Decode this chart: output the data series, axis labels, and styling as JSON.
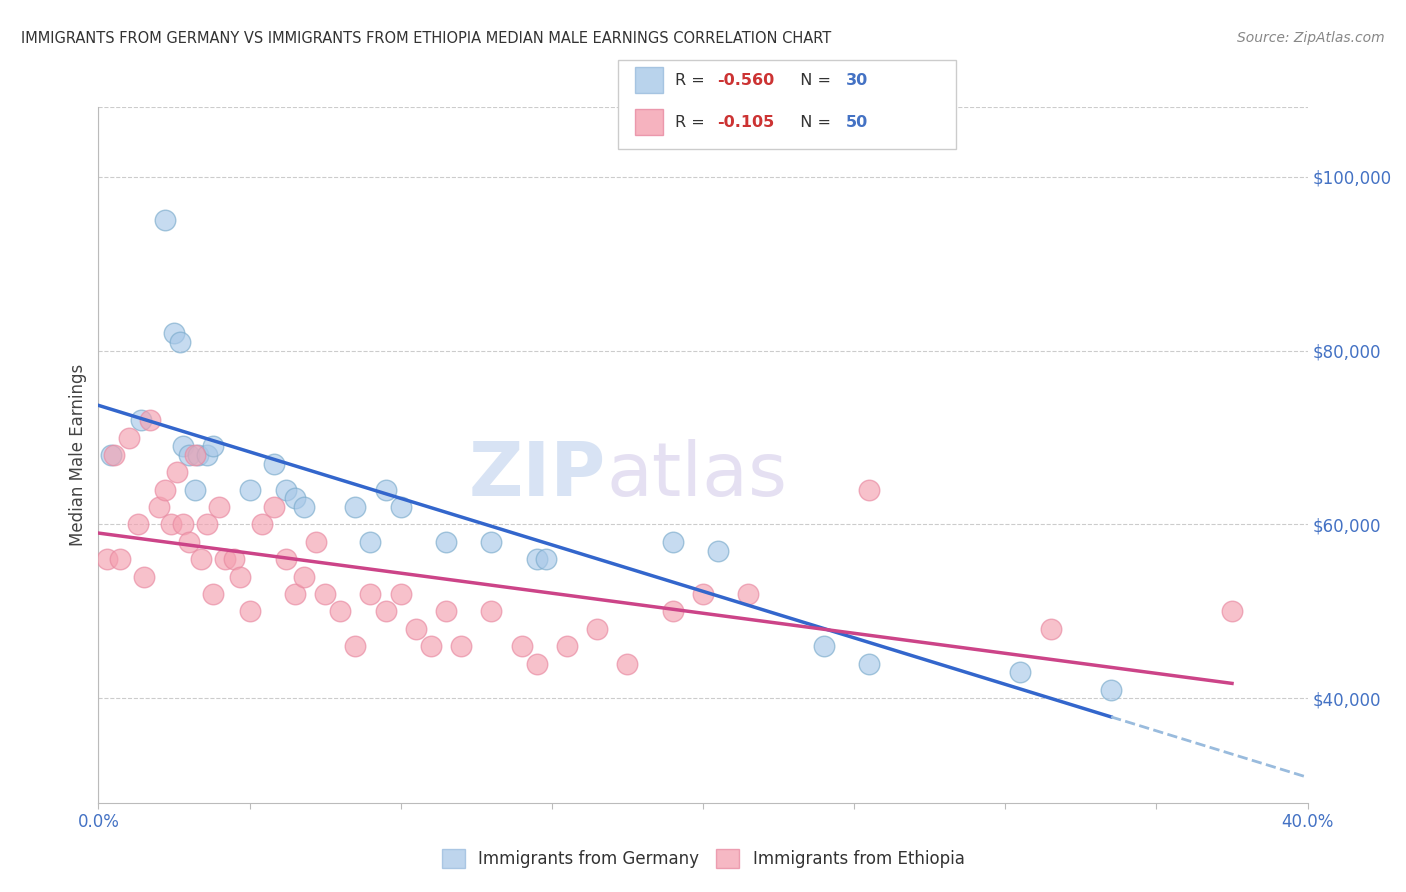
{
  "title": "IMMIGRANTS FROM GERMANY VS IMMIGRANTS FROM ETHIOPIA MEDIAN MALE EARNINGS CORRELATION CHART",
  "source": "Source: ZipAtlas.com",
  "ylabel": "Median Male Earnings",
  "right_yticks": [
    "$100,000",
    "$80,000",
    "$60,000",
    "$40,000"
  ],
  "right_ytick_vals": [
    100000,
    80000,
    60000,
    40000
  ],
  "watermark_zip": "ZIP",
  "watermark_atlas": "atlas",
  "germany_color": "#a8c8e8",
  "ethiopia_color": "#f4a0b0",
  "germany_line_color": "#3366cc",
  "ethiopia_line_color": "#cc4488",
  "germany_line_dash_color": "#99bbdd",
  "background_color": "#ffffff",
  "xlim": [
    0.0,
    0.4
  ],
  "ylim": [
    28000,
    108000
  ],
  "germany_x": [
    0.004,
    0.014,
    0.022,
    0.025,
    0.027,
    0.028,
    0.03,
    0.032,
    0.033,
    0.036,
    0.038,
    0.05,
    0.058,
    0.062,
    0.065,
    0.068,
    0.085,
    0.09,
    0.095,
    0.1,
    0.115,
    0.13,
    0.145,
    0.148,
    0.19,
    0.205,
    0.24,
    0.255,
    0.305,
    0.335
  ],
  "germany_y": [
    68000,
    72000,
    95000,
    82000,
    81000,
    69000,
    68000,
    64000,
    68000,
    68000,
    69000,
    64000,
    67000,
    64000,
    63000,
    62000,
    62000,
    58000,
    64000,
    62000,
    58000,
    58000,
    56000,
    56000,
    58000,
    57000,
    46000,
    44000,
    43000,
    41000
  ],
  "ethiopia_x": [
    0.003,
    0.005,
    0.007,
    0.01,
    0.013,
    0.015,
    0.017,
    0.02,
    0.022,
    0.024,
    0.026,
    0.028,
    0.03,
    0.032,
    0.034,
    0.036,
    0.038,
    0.04,
    0.042,
    0.045,
    0.047,
    0.05,
    0.054,
    0.058,
    0.062,
    0.065,
    0.068,
    0.072,
    0.075,
    0.08,
    0.085,
    0.09,
    0.095,
    0.1,
    0.105,
    0.11,
    0.115,
    0.12,
    0.13,
    0.14,
    0.145,
    0.155,
    0.165,
    0.175,
    0.19,
    0.2,
    0.215,
    0.255,
    0.315,
    0.375
  ],
  "ethiopia_y": [
    56000,
    68000,
    56000,
    70000,
    60000,
    54000,
    72000,
    62000,
    64000,
    60000,
    66000,
    60000,
    58000,
    68000,
    56000,
    60000,
    52000,
    62000,
    56000,
    56000,
    54000,
    50000,
    60000,
    62000,
    56000,
    52000,
    54000,
    58000,
    52000,
    50000,
    46000,
    52000,
    50000,
    52000,
    48000,
    46000,
    50000,
    46000,
    50000,
    46000,
    44000,
    46000,
    48000,
    44000,
    50000,
    52000,
    52000,
    64000,
    48000,
    50000
  ]
}
